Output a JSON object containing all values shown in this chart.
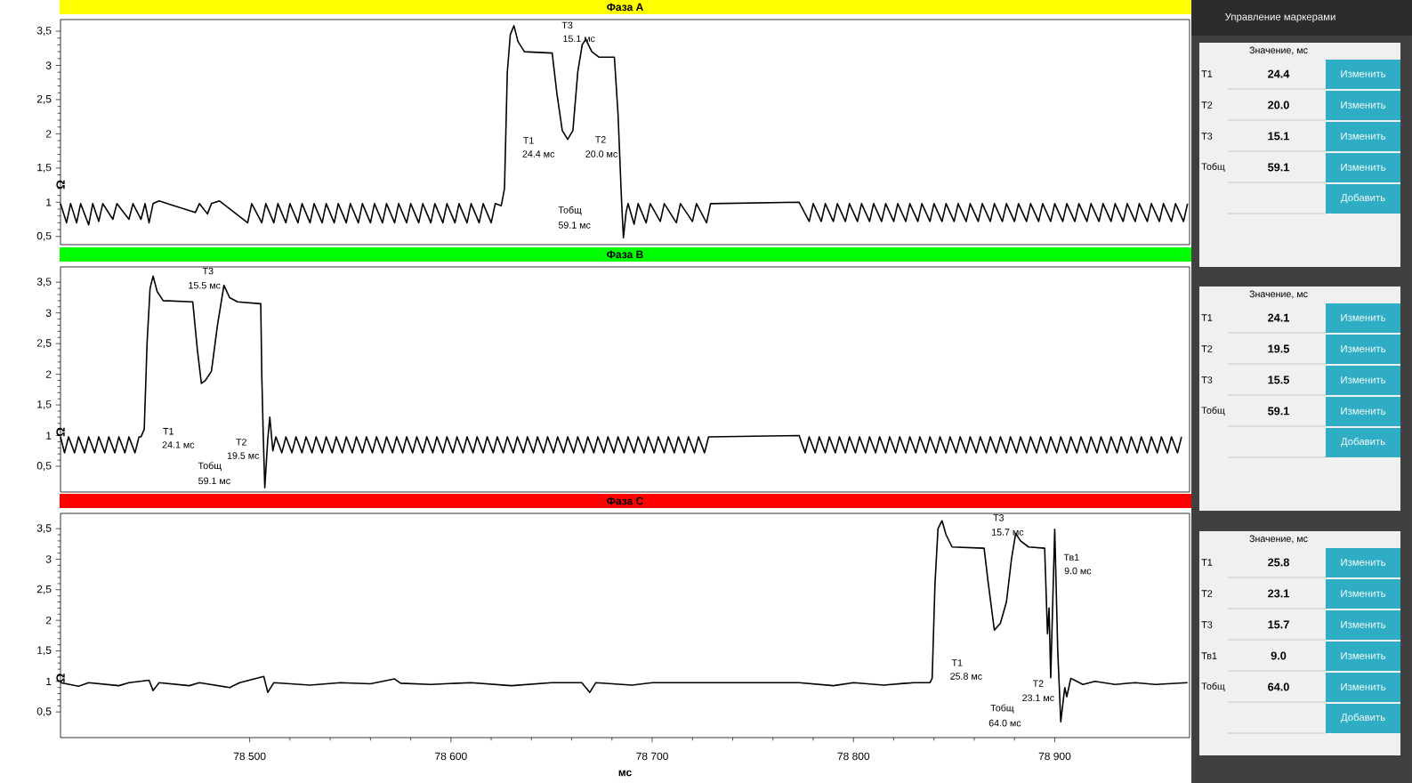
{
  "chart_data": [
    {
      "type": "line",
      "title": "Фаза A",
      "ylabel": "Ω",
      "xlim": [
        78406,
        78967
      ],
      "ylim": [
        0.38,
        3.67
      ],
      "tick_labels": "y",
      "yticks": [
        {
          "value": 0.5,
          "label": "0,5"
        },
        1,
        {
          "value": 1.5,
          "label": "1,5"
        },
        2,
        {
          "value": 2.5,
          "label": "2,5"
        },
        3,
        {
          "value": 3.5,
          "label": "3,5"
        }
      ],
      "series": [
        {
          "color": "#000000",
          "x": [
            78406,
            78409,
            78411,
            78414,
            78416,
            78420,
            78422,
            78425,
            78427,
            78432,
            78434,
            78440,
            78442,
            78446,
            78448,
            78450,
            78452,
            78455,
            78460,
            78473,
            78475,
            78479,
            78481,
            78485,
            78499,
            78501,
            78506,
            78508,
            78512,
            78514,
            78518,
            78520,
            78524,
            78526,
            78530,
            78532,
            78536,
            78538,
            78542,
            78544,
            78548,
            78550,
            78554,
            78556,
            78560,
            78562,
            78566,
            78568,
            78572,
            78574,
            78578,
            78580,
            78584,
            78586,
            78590,
            78592,
            78596,
            78598,
            78602,
            78604,
            78608,
            78610,
            78614,
            78616,
            78620,
            78622,
            78625,
            78626.6,
            78628,
            78629.5,
            78631.3,
            78633.3,
            78636.5,
            78650.3,
            78652.6,
            78655.3,
            78658,
            78660.6,
            78663,
            78665.2,
            78667,
            78670,
            78673.6,
            78681.2,
            78683,
            78684.8,
            78685.7,
            78687,
            78688,
            78691,
            78693,
            78697,
            78699,
            78704,
            78706,
            78712,
            78714,
            78720,
            78722,
            78727,
            78729,
            78773,
            78778,
            78780,
            78784,
            78786,
            78790,
            78792,
            78796,
            78798,
            78802,
            78804,
            78808,
            78810,
            78814,
            78816,
            78820,
            78822,
            78826,
            78828,
            78832,
            78834,
            78838,
            78840,
            78844,
            78846,
            78850,
            78852,
            78856,
            78858,
            78862,
            78864,
            78868,
            78870,
            78874,
            78876,
            78880,
            78882,
            78886,
            78888,
            78892,
            78894,
            78898,
            78900,
            78904,
            78906,
            78910,
            78912,
            78916,
            78918,
            78922,
            78924,
            78928,
            78930,
            78934,
            78936,
            78940,
            78942,
            78946,
            78948,
            78952,
            78954,
            78958,
            78960,
            78964,
            78966
          ],
          "values": [
            0.98,
            0.7,
            0.98,
            0.7,
            0.98,
            0.67,
            0.98,
            0.72,
            0.98,
            0.75,
            0.98,
            0.75,
            0.98,
            0.75,
            0.98,
            0.7,
            0.98,
            1.02,
            0.97,
            0.85,
            0.98,
            0.83,
            0.98,
            1.02,
            0.7,
            0.98,
            0.7,
            0.98,
            0.7,
            0.98,
            0.7,
            0.98,
            0.7,
            0.98,
            0.7,
            0.98,
            0.7,
            0.98,
            0.7,
            0.98,
            0.7,
            0.98,
            0.7,
            0.98,
            0.7,
            0.98,
            0.7,
            0.98,
            0.7,
            0.98,
            0.7,
            0.98,
            0.7,
            0.98,
            0.7,
            0.98,
            0.7,
            0.98,
            0.7,
            0.98,
            0.7,
            0.98,
            0.7,
            0.98,
            0.7,
            0.98,
            0.95,
            1.2,
            2.9,
            3.45,
            3.58,
            3.35,
            3.2,
            3.18,
            2.6,
            2.05,
            1.92,
            2.05,
            2.9,
            3.3,
            3.38,
            3.2,
            3.12,
            3.12,
            2.3,
            1.0,
            0.48,
            0.85,
            0.98,
            0.68,
            0.98,
            0.7,
            0.98,
            0.72,
            0.98,
            0.7,
            0.98,
            0.72,
            0.98,
            0.7,
            0.98,
            1.0,
            0.72,
            0.98,
            0.72,
            0.98,
            0.72,
            0.98,
            0.72,
            0.98,
            0.72,
            0.98,
            0.72,
            0.98,
            0.72,
            0.98,
            0.72,
            0.98,
            0.72,
            0.98,
            0.72,
            0.98,
            0.72,
            0.98,
            0.72,
            0.98,
            0.72,
            0.98,
            0.72,
            0.98,
            0.72,
            0.98,
            0.72,
            0.98,
            0.72,
            0.98,
            0.72,
            0.98,
            0.72,
            0.98,
            0.72,
            0.98,
            0.72,
            0.98,
            0.72,
            0.98,
            0.72,
            0.98,
            0.72,
            0.98,
            0.72,
            0.98,
            0.72,
            0.98,
            0.72,
            0.98,
            0.72,
            0.98,
            0.72,
            0.98,
            0.72,
            0.98,
            0.72,
            0.98,
            0.72,
            0.98
          ]
        }
      ],
      "annotations": [
        "T3",
        "15.1 мс",
        "T1",
        "24.4 мс",
        "T2",
        "20.0 мс",
        "Тобщ",
        "59.1 мс"
      ]
    },
    {
      "type": "line",
      "title": "Фаза B",
      "ylabel": "Ω",
      "xlim": [
        78406,
        78967
      ],
      "ylim": [
        0.08,
        3.75
      ],
      "tick_labels": "y",
      "yticks": [
        {
          "value": 0.5,
          "label": "0,5"
        },
        1,
        {
          "value": 1.5,
          "label": "1,5"
        },
        2,
        {
          "value": 2.5,
          "label": "2,5"
        },
        3,
        {
          "value": 3.5,
          "label": "3,5"
        }
      ],
      "series": [
        {
          "color": "#000000",
          "x": [
            78406,
            78408,
            78410,
            78413,
            78415,
            78418,
            78420,
            78423,
            78425,
            78428,
            78430,
            78433,
            78435,
            78438,
            78440,
            78443,
            78445,
            78446,
            78447.6,
            78449,
            78450.5,
            78452,
            78454,
            78457,
            78471.7,
            78474,
            78476,
            78478,
            78481,
            78484,
            78487.2,
            78490,
            78494,
            78505.5,
            78506,
            78506.7,
            78507.5,
            78509,
            78510,
            78511.5,
            78513,
            78516,
            78518,
            78521,
            78523,
            78526,
            78528,
            78531,
            78533,
            78536,
            78538,
            78541,
            78543,
            78546,
            78548,
            78551,
            78553,
            78556,
            78558,
            78561,
            78563,
            78566,
            78568,
            78571,
            78573,
            78576,
            78578,
            78581,
            78583,
            78586,
            78588,
            78591,
            78593,
            78596,
            78598,
            78601,
            78603,
            78606,
            78608,
            78611,
            78613,
            78616,
            78618,
            78621,
            78623,
            78626,
            78628,
            78631,
            78633,
            78636,
            78638,
            78641,
            78643,
            78646,
            78648,
            78651,
            78653,
            78656,
            78658,
            78661,
            78663,
            78666,
            78668,
            78671,
            78673,
            78676,
            78678,
            78681,
            78683,
            78686,
            78688,
            78691,
            78693,
            78696,
            78698,
            78701,
            78703,
            78706,
            78708,
            78711,
            78713,
            78716,
            78718,
            78721,
            78723,
            78726,
            78728,
            78773,
            78776,
            78778,
            78781,
            78783,
            78786,
            78788,
            78791,
            78793,
            78796,
            78798,
            78801,
            78803,
            78806,
            78808,
            78811,
            78813,
            78816,
            78818,
            78821,
            78823,
            78826,
            78828,
            78831,
            78833,
            78836,
            78838,
            78841,
            78843,
            78846,
            78848,
            78851,
            78853,
            78856,
            78858,
            78861,
            78863,
            78866,
            78868,
            78871,
            78873,
            78876,
            78878,
            78881,
            78883,
            78886,
            78888,
            78891,
            78893,
            78896,
            78898,
            78901,
            78903,
            78906,
            78908,
            78911,
            78913,
            78916,
            78918,
            78921,
            78923,
            78926,
            78928,
            78931,
            78933,
            78936,
            78938,
            78941,
            78943,
            78946,
            78948,
            78951,
            78953,
            78956,
            78958,
            78961,
            78963
          ],
          "values": [
            0.98,
            0.72,
            0.98,
            0.72,
            0.98,
            0.72,
            0.98,
            0.72,
            0.98,
            0.72,
            0.98,
            0.72,
            0.98,
            0.72,
            0.98,
            0.72,
            0.98,
            0.98,
            1.1,
            2.5,
            3.4,
            3.6,
            3.35,
            3.2,
            3.18,
            2.4,
            1.85,
            1.9,
            2.05,
            2.8,
            3.45,
            3.25,
            3.18,
            3.15,
            2.0,
            1.05,
            0.15,
            0.95,
            1.3,
            0.75,
            0.98,
            0.72,
            0.98,
            0.72,
            0.98,
            0.72,
            0.98,
            0.72,
            0.98,
            0.72,
            0.98,
            0.72,
            0.98,
            0.72,
            0.98,
            0.72,
            0.98,
            0.72,
            0.98,
            0.72,
            0.98,
            0.72,
            0.98,
            0.72,
            0.98,
            0.72,
            0.98,
            0.72,
            0.98,
            0.72,
            0.98,
            0.72,
            0.98,
            0.72,
            0.98,
            0.72,
            0.98,
            0.72,
            0.98,
            0.72,
            0.98,
            0.72,
            0.98,
            0.72,
            0.98,
            0.72,
            0.98,
            0.72,
            0.98,
            0.72,
            0.98,
            0.72,
            0.98,
            0.72,
            0.98,
            0.72,
            0.98,
            0.72,
            0.98,
            0.72,
            0.98,
            0.72,
            0.98,
            0.72,
            0.98,
            0.72,
            0.98,
            0.72,
            0.98,
            0.72,
            0.98,
            0.72,
            0.98,
            0.72,
            0.98,
            0.72,
            0.98,
            0.72,
            0.98,
            0.72,
            0.98,
            0.72,
            0.98,
            0.72,
            0.98,
            0.72,
            0.98,
            1.0,
            0.72,
            0.98,
            0.72,
            0.98,
            0.72,
            0.98,
            0.72,
            0.98,
            0.72,
            0.98,
            0.72,
            0.98,
            0.72,
            0.98,
            0.72,
            0.98,
            0.72,
            0.98,
            0.72,
            0.98,
            0.72,
            0.98,
            0.72,
            0.98,
            0.72,
            0.98,
            0.72,
            0.98,
            0.72,
            0.98,
            0.72,
            0.98,
            0.72,
            0.98,
            0.72,
            0.98,
            0.72,
            0.98,
            0.72,
            0.98,
            0.72,
            0.98,
            0.72,
            0.98,
            0.72,
            0.98,
            0.72,
            0.98,
            0.72,
            0.98,
            0.72,
            0.98,
            0.72,
            0.98,
            0.72,
            0.98,
            0.72,
            0.98,
            0.72,
            0.98,
            0.72,
            0.98,
            0.72,
            0.98,
            0.72,
            0.98,
            0.72,
            0.98,
            0.72,
            0.98,
            0.72,
            0.98,
            0.72,
            0.98,
            0.72,
            0.98
          ]
        }
      ],
      "annotations": [
        "T3",
        "15.5 мс",
        "T1",
        "24.1 мс",
        "T2",
        "19.5 мс",
        "Тобщ",
        "59.1 мс"
      ]
    },
    {
      "type": "line",
      "title": "Фаза C",
      "ylabel": "Ω",
      "xlabel": "мс",
      "xlim": [
        78406,
        78967
      ],
      "ylim": [
        0.08,
        3.75
      ],
      "xticks": [
        {
          "value": 78500,
          "label": "78 500"
        },
        {
          "value": 78600,
          "label": "78 600"
        },
        {
          "value": 78700,
          "label": "78 700"
        },
        {
          "value": 78800,
          "label": "78 800"
        },
        {
          "value": 78900,
          "label": "78 900"
        }
      ],
      "yticks": [
        {
          "value": 0.5,
          "label": "0,5"
        },
        1,
        {
          "value": 1.5,
          "label": "1,5"
        },
        2,
        {
          "value": 2.5,
          "label": "2,5"
        },
        3,
        {
          "value": 3.5,
          "label": "3,5"
        }
      ],
      "series": [
        {
          "color": "#000000",
          "x": [
            78406,
            78415,
            78420,
            78435,
            78440,
            78450,
            78452,
            78455,
            78470,
            78475,
            78490,
            78495,
            78507,
            78509,
            78512,
            78530,
            78545,
            78560,
            78572,
            78575,
            78590,
            78610,
            78630,
            78650,
            78665,
            78669,
            78672,
            78690,
            78700,
            78730,
            78773,
            78790,
            78800,
            78815,
            78830,
            78838,
            78839.1,
            78840.5,
            78842,
            78844,
            78846,
            78849,
            78864.9,
            78867,
            78870,
            78873,
            78876,
            78878.5,
            78880.6,
            78883,
            78887,
            78895,
            78896.4,
            78897.2,
            78898,
            78900,
            78901.5,
            78903,
            78905,
            78906,
            78908,
            78914,
            78920,
            78930,
            78940,
            78950,
            78966
          ],
          "values": [
            0.98,
            0.92,
            0.98,
            0.93,
            0.98,
            1.02,
            0.85,
            0.98,
            0.93,
            0.98,
            0.9,
            0.98,
            1.08,
            0.82,
            0.98,
            0.94,
            0.98,
            0.96,
            1.04,
            0.97,
            0.95,
            0.98,
            0.93,
            0.98,
            0.98,
            0.82,
            0.98,
            0.94,
            0.98,
            0.98,
            0.98,
            0.93,
            0.98,
            0.94,
            0.98,
            0.98,
            1.05,
            2.6,
            3.5,
            3.63,
            3.4,
            3.2,
            3.18,
            2.6,
            1.84,
            1.95,
            2.3,
            3.0,
            3.42,
            3.3,
            3.2,
            3.18,
            1.78,
            2.2,
            1.06,
            3.49,
            1.5,
            0.34,
            0.9,
            0.75,
            1.05,
            0.95,
            1.0,
            0.95,
            0.98,
            0.95,
            0.98
          ]
        }
      ],
      "annotations": [
        "T3",
        "15.7 мс",
        "T1",
        "25.8 мс",
        "Тв1",
        "9.0 мс",
        "T2",
        "23.1 мс",
        "Тобщ",
        "64.0 мс"
      ]
    },
    {
      "type": "other",
      "title": "Управление маркерами",
      "subtitle": "Значение, мс",
      "annotations": [
        "T1",
        "24.4",
        "Изменить",
        "T2",
        "20.0",
        "Изменить",
        "T3",
        "15.1",
        "Изменить",
        "Тобщ",
        "59.1",
        "Изменить",
        "Добавить"
      ]
    },
    {
      "type": "other",
      "subtitle": "Значение, мс",
      "annotations": [
        "T1",
        "24.1",
        "Изменить",
        "T2",
        "19.5",
        "Изменить",
        "T3",
        "15.5",
        "Изменить",
        "Тобщ",
        "59.1",
        "Изменить",
        "Добавить"
      ]
    },
    {
      "type": "other",
      "subtitle": "Значение, мс",
      "annotations": [
        "T1",
        "25.8",
        "Изменить",
        "T2",
        "23.1",
        "Изменить",
        "T3",
        "15.7",
        "Изменить",
        "Тв1",
        "9.0",
        "Изменить",
        "Тобщ",
        "64.0",
        "Изменить",
        "Добавить"
      ]
    }
  ]
}
